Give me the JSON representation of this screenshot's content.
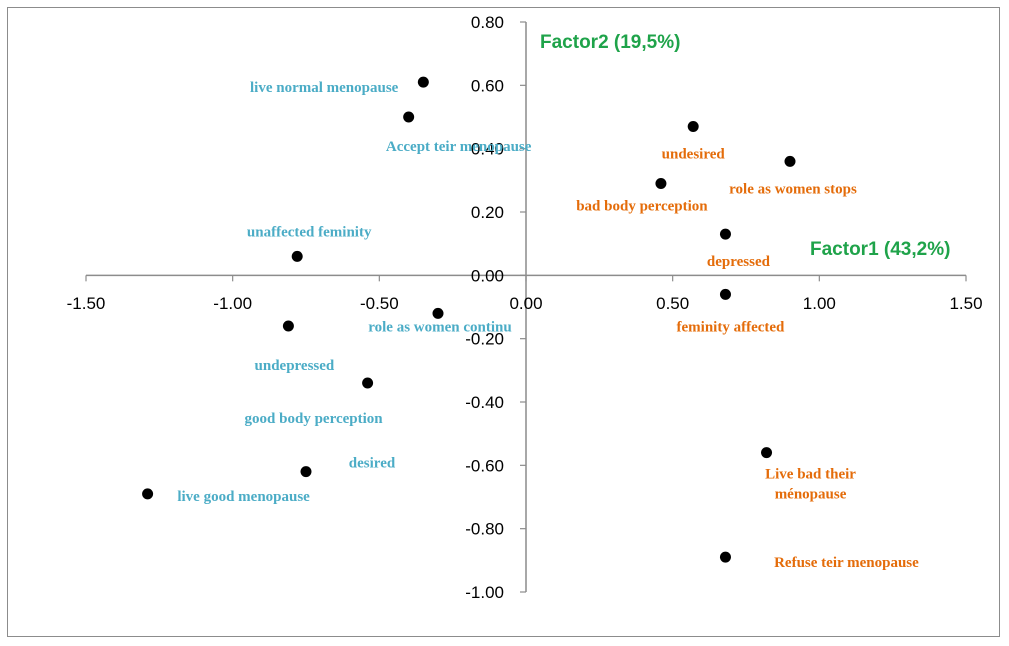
{
  "chart_data": {
    "type": "scatter",
    "title": "",
    "xlabel": "Factor1 (43,2%)",
    "ylabel": "Factor2 (19,5%)",
    "xlim": [
      -1.5,
      1.5
    ],
    "ylim": [
      -1.0,
      0.8
    ],
    "x_ticks": [
      "-1.50",
      "-1.00",
      "-0.50",
      "0.00",
      "0.50",
      "1.00",
      "1.50"
    ],
    "y_ticks": [
      "0.80",
      "0.60",
      "0.40",
      "0.20",
      "0.00",
      "-0.20",
      "-0.40",
      "-0.60",
      "-0.80",
      "-1.00"
    ],
    "grid": false,
    "colors": {
      "left_group": "#4bacc6",
      "right_group": "#e46c0a",
      "factor": "#1fa34a",
      "point": "#000000"
    },
    "points": [
      {
        "label": "live normal menopause",
        "x": -0.35,
        "y": 0.61,
        "group": "left"
      },
      {
        "label": "Accept teir menopause",
        "x": -0.4,
        "y": 0.5,
        "group": "left"
      },
      {
        "label": "unaffected feminity",
        "x": -0.78,
        "y": 0.06,
        "group": "left"
      },
      {
        "label": "role as women continu",
        "x": -0.3,
        "y": -0.12,
        "group": "left"
      },
      {
        "label": "undepressed",
        "x": -0.81,
        "y": -0.16,
        "group": "left"
      },
      {
        "label": "good body  perception",
        "x": -0.54,
        "y": -0.34,
        "group": "left"
      },
      {
        "label": "desired",
        "x": -0.75,
        "y": -0.62,
        "group": "left"
      },
      {
        "label": "live good menopause",
        "x": -1.29,
        "y": -0.69,
        "group": "left"
      },
      {
        "label": "undesired",
        "x": 0.57,
        "y": 0.47,
        "group": "right"
      },
      {
        "label": "role as women stops",
        "x": 0.9,
        "y": 0.36,
        "group": "right"
      },
      {
        "label": "bad  body perception",
        "x": 0.46,
        "y": 0.29,
        "group": "right"
      },
      {
        "label": "depressed",
        "x": 0.68,
        "y": 0.13,
        "group": "right"
      },
      {
        "label": "feminity affected",
        "x": 0.68,
        "y": -0.06,
        "group": "right"
      },
      {
        "label": "Live bad their|ménopause",
        "x": 0.82,
        "y": -0.56,
        "group": "right"
      },
      {
        "label": "Refuse teir menopause",
        "x": 0.68,
        "y": -0.89,
        "group": "right"
      }
    ]
  }
}
